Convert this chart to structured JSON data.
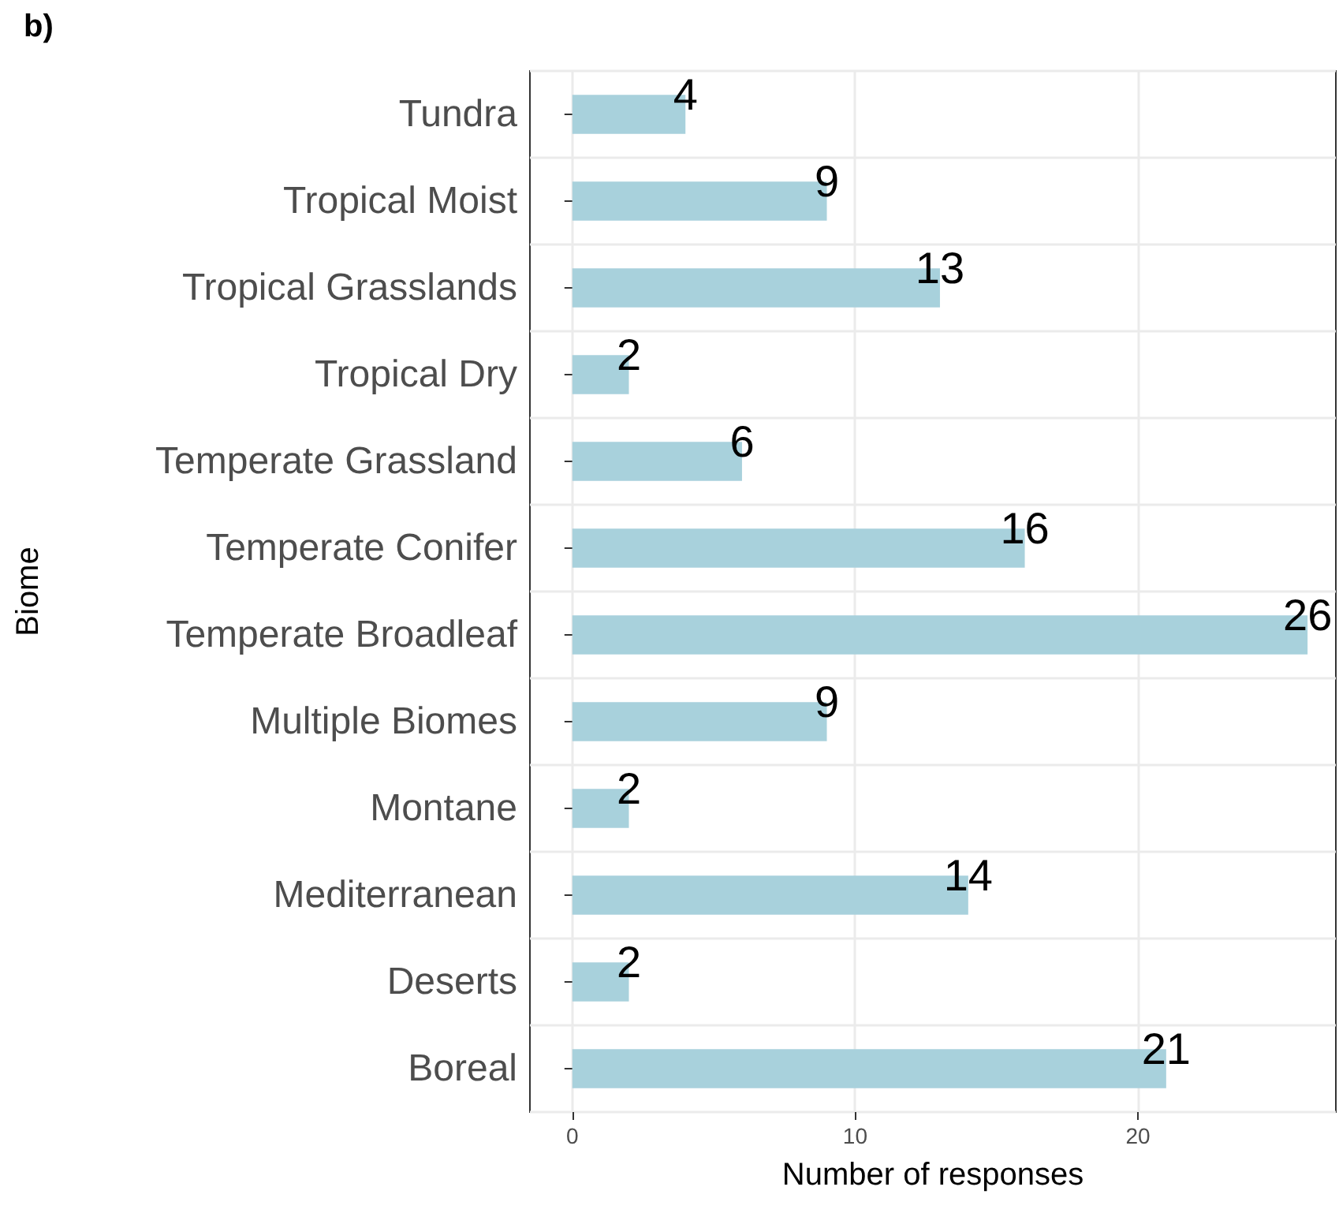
{
  "chart_data": {
    "type": "bar",
    "orientation": "horizontal",
    "title": "b)",
    "xlabel": "Number of responses",
    "ylabel": "Biome",
    "categories": [
      "Tundra",
      "Tropical Moist",
      "Tropical Grasslands",
      "Tropical Dry",
      "Temperate Grassland",
      "Temperate Conifer",
      "Temperate Broadleaf",
      "Multiple Biomes",
      "Montane",
      "Mediterranean",
      "Deserts",
      "Boreal"
    ],
    "values": [
      4,
      9,
      13,
      2,
      6,
      16,
      26,
      9,
      2,
      14,
      2,
      21
    ],
    "color": "#a8d1dc",
    "data_labels": true,
    "xlim": [
      -1.5,
      27
    ],
    "xticks": [
      0,
      10,
      20
    ],
    "grid": true
  }
}
